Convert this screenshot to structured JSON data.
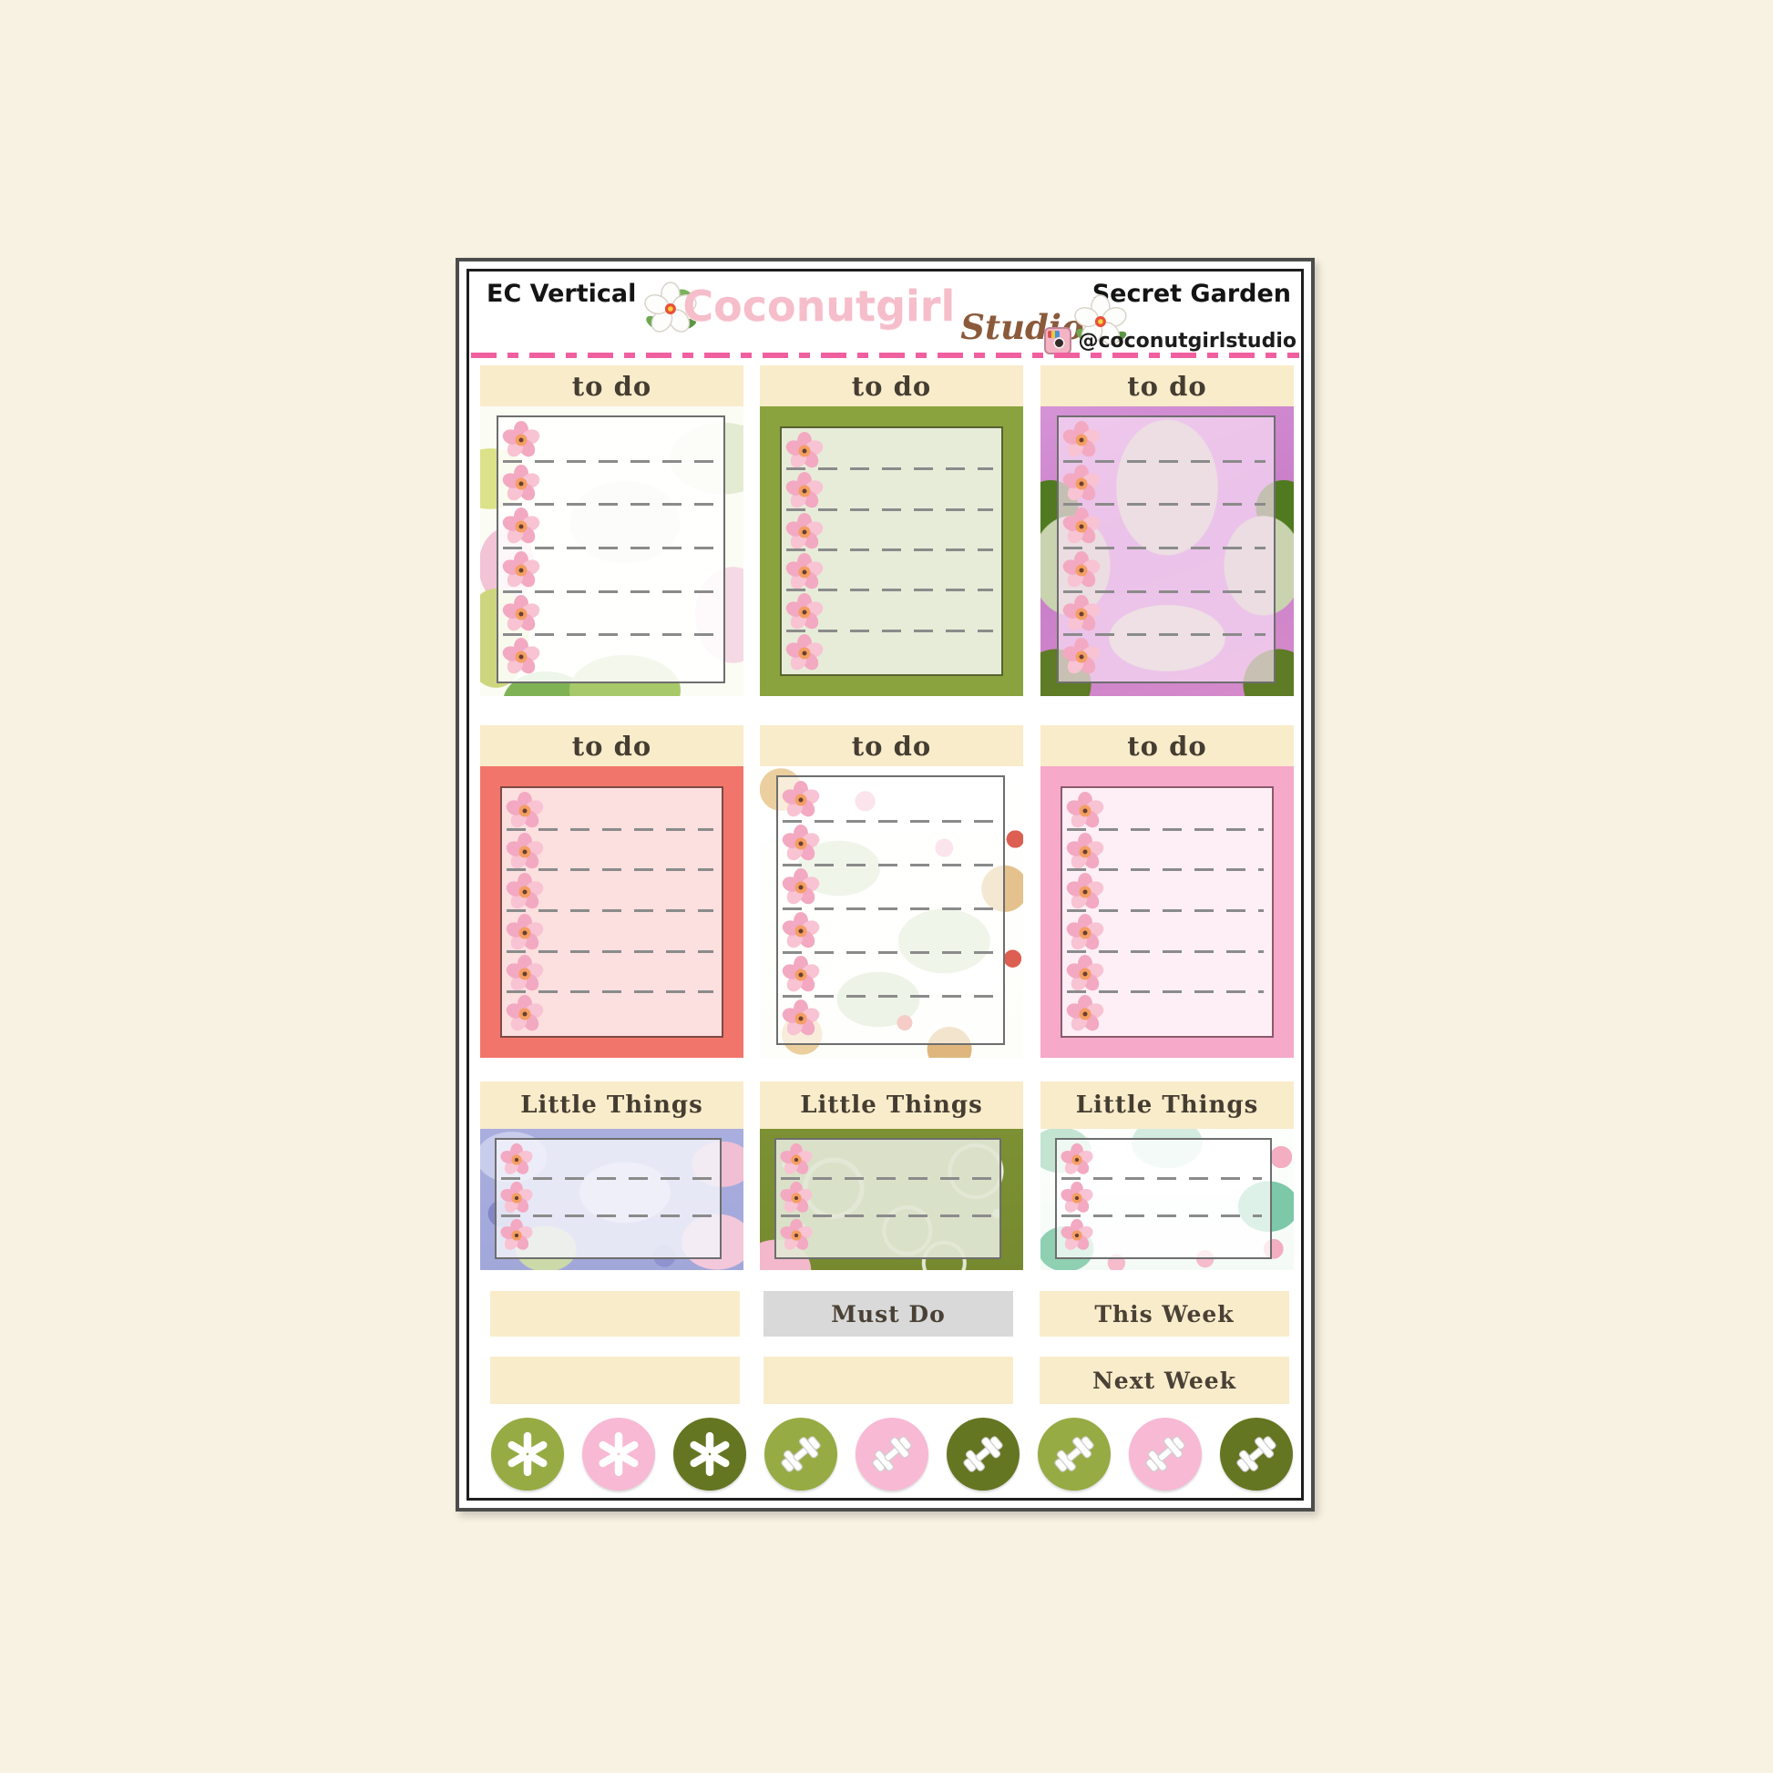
{
  "page": {
    "background_color": "#f8f2e2"
  },
  "sheet": {
    "format_label": "EC Vertical",
    "collection_label": "Secret Garden",
    "logo": {
      "brand": "Coconutgirl",
      "suffix": "Studio",
      "flower_icon": "hibiscus-flower-icon"
    },
    "instagram": {
      "icon": "instagram-camera-icon",
      "handle": "@coconutgirlstudio"
    },
    "colors": {
      "header_strip": "#f9ecca",
      "divider_pink": "#f0609f",
      "gray_bar": "#d9d9d9",
      "olive_light": "#96ab44",
      "olive_dark": "#647621",
      "dot_pink": "#f8b9d4",
      "label_text": "#453d31"
    },
    "boxes": [
      {
        "label": "to do",
        "style": "fairy-floral",
        "rows": 6
      },
      {
        "label": "to do",
        "style": "olive-solid",
        "rows": 6
      },
      {
        "label": "to do",
        "style": "orchid-damask",
        "rows": 6
      },
      {
        "label": "to do",
        "style": "coral-solid",
        "rows": 6
      },
      {
        "label": "to do",
        "style": "orchard-floral",
        "rows": 6
      },
      {
        "label": "to do",
        "style": "pink-solid",
        "rows": 6
      },
      {
        "label": "Little Things",
        "style": "lavender-floral",
        "rows": 3
      },
      {
        "label": "Little Things",
        "style": "olive-fruit",
        "rows": 3
      },
      {
        "label": "Little Things",
        "style": "mint-floral",
        "rows": 3
      }
    ],
    "bars": [
      {
        "label": "",
        "variant": "cream"
      },
      {
        "label": "Must Do",
        "variant": "gray"
      },
      {
        "label": "This Week",
        "variant": "cream"
      },
      {
        "label": "",
        "variant": "cream"
      },
      {
        "label": "",
        "variant": "cream"
      },
      {
        "label": "Next Week",
        "variant": "cream"
      }
    ],
    "dots": [
      {
        "icon": "asterisk",
        "color": "#96ab44"
      },
      {
        "icon": "asterisk",
        "color": "#f8b9d4"
      },
      {
        "icon": "asterisk",
        "color": "#647621"
      },
      {
        "icon": "dumbbell",
        "color": "#96ab44"
      },
      {
        "icon": "dumbbell",
        "color": "#f8b9d4"
      },
      {
        "icon": "dumbbell",
        "color": "#647621"
      },
      {
        "icon": "dumbbell",
        "color": "#96ab44"
      },
      {
        "icon": "dumbbell",
        "color": "#f8b9d4"
      },
      {
        "icon": "dumbbell",
        "color": "#647621"
      }
    ]
  }
}
